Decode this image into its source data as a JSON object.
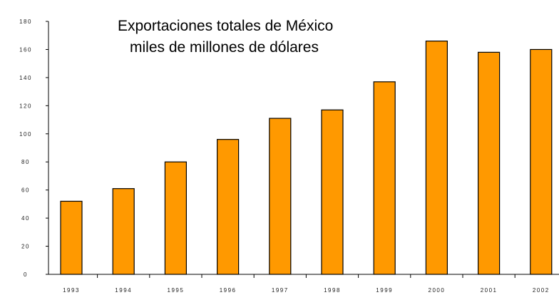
{
  "chart_data": {
    "type": "bar",
    "title": "Exportaciones totales de México",
    "subtitle": "miles de millones de dólares",
    "xlabel": "",
    "ylabel": "",
    "categories": [
      "1993",
      "1994",
      "1995",
      "1996",
      "1997",
      "1998",
      "1999",
      "2000",
      "2001",
      "2002"
    ],
    "values": [
      52,
      61,
      80,
      96,
      111,
      117,
      137,
      166,
      158,
      160
    ],
    "y_tick_labels": [
      "0",
      "20",
      "40",
      "60",
      "80",
      "100",
      "120",
      "140",
      "160",
      "180"
    ],
    "ylim": [
      0,
      180
    ],
    "grid": false,
    "legend": "none",
    "bar_color": "#FF9900",
    "bar_outline_color": "#000000"
  }
}
